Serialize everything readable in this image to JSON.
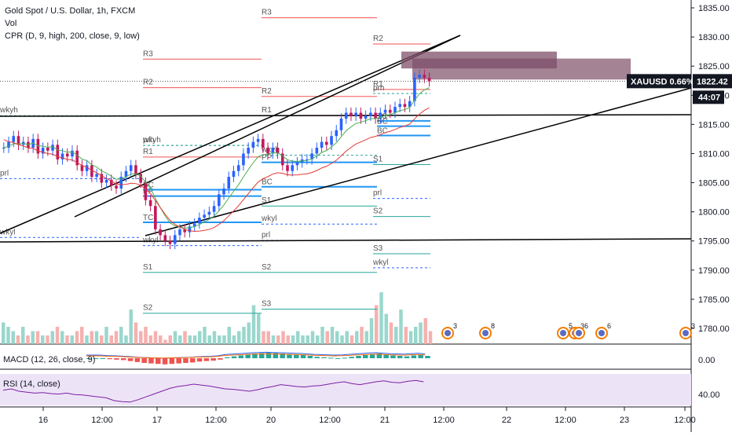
{
  "legend": {
    "symbol": "Gold Spot / U.S. Dollar, 1h, FXCM",
    "vol": "Vol",
    "cpr": "CPR (D, 9, high, 200, close, 9, low)"
  },
  "macd_label": "MACD (12, 26, close, 9)",
  "rsi_label": "RSI (14, close)",
  "price_tag": {
    "symbol": "XAUUSD 0.66%",
    "price": "1822.42",
    "countdown": "44:07"
  },
  "colors": {
    "up": "#26a69a",
    "down": "#ef5350",
    "candle_up": "#2962ff",
    "candle_down": "#c2185b",
    "rsi_bg": "#ede3f7"
  },
  "chart_data": {
    "type": "candlestick",
    "ylim": [
      1775.5,
      1836.5
    ],
    "y_ticks": [
      1835,
      1830,
      1825,
      1820,
      1815,
      1810,
      1805,
      1800,
      1795,
      1790,
      1785,
      1780
    ],
    "y_tick_labels": [
      "1835.00",
      "1830.00",
      "1825.00",
      "1820.00",
      "1815.00",
      "1810.00",
      "1805.00",
      "1800.00",
      "1795.00",
      "1790.00",
      "1785.00",
      "1780.00"
    ],
    "x_labels": [
      "16",
      "12:00",
      "17",
      "12:00",
      "20",
      "12:00",
      "21",
      "12:00",
      "22",
      "12:00",
      "23",
      "12:00"
    ],
    "closes": [
      1811,
      1812,
      1813,
      1811.5,
      1812,
      1811,
      1812.5,
      1810,
      1811,
      1810.5,
      1811.5,
      1809,
      1810,
      1809.5,
      1810.5,
      1808,
      1807,
      1808,
      1806,
      1806.5,
      1805,
      1805.5,
      1804.5,
      1804,
      1806,
      1807,
      1808,
      1806.5,
      1805,
      1802,
      1801,
      1797,
      1796,
      1795,
      1794.5,
      1796,
      1797,
      1796.5,
      1797.5,
      1798,
      1799,
      1799.5,
      1800,
      1801,
      1803,
      1804,
      1806,
      1807,
      1808,
      1810,
      1811,
      1812,
      1812.5,
      1811,
      1810,
      1811,
      1810,
      1808,
      1807,
      1808,
      1808.5,
      1809,
      1809,
      1810,
      1811,
      1812,
      1811.5,
      1813,
      1814,
      1816,
      1817,
      1816.5,
      1817,
      1816,
      1816.5,
      1817,
      1816,
      1817,
      1817.5,
      1817,
      1818,
      1818.5,
      1818,
      1819,
      1823,
      1823.5,
      1823,
      1822.4
    ],
    "volumes": [
      5,
      4,
      3,
      2,
      4,
      2,
      3,
      3,
      2,
      2,
      3,
      4,
      3,
      2,
      2,
      3,
      4,
      2,
      3,
      3,
      2,
      4,
      2,
      3,
      4,
      2,
      8,
      5,
      3,
      4,
      2,
      3,
      2,
      1,
      2,
      3,
      2,
      3,
      2,
      2,
      3,
      4,
      2,
      3,
      2,
      2,
      4,
      2,
      3,
      4,
      5,
      9,
      7,
      3,
      3,
      2,
      2,
      3,
      2,
      2,
      3,
      2,
      2,
      3,
      2,
      4,
      3,
      4,
      3,
      2,
      3,
      2,
      3,
      4,
      3,
      6,
      9,
      12,
      7,
      5,
      4,
      8,
      4,
      3,
      4,
      5,
      6,
      3
    ],
    "macd_hist": [
      0,
      0,
      0,
      -0.2,
      -0.3,
      -0.4,
      -0.6,
      -0.8,
      -1,
      -1.1,
      -1.2,
      -1.3,
      -1.2,
      -1.1,
      -1,
      -0.9,
      -0.7,
      -0.6,
      -0.5,
      -0.3,
      0.2,
      0.4,
      0.6,
      0.8,
      1,
      1.1,
      1.2,
      1.1,
      1,
      0.9,
      0.8,
      0.7,
      0.5,
      0.3,
      0.2,
      0.1,
      0,
      0.1,
      0.3,
      0.5,
      0.7,
      0.9,
      1,
      0.8,
      0.6,
      0.5,
      0.4,
      0.6,
      0.8,
      0.5
    ],
    "rsi": [
      52,
      55,
      50,
      48,
      46,
      47,
      45,
      44,
      46,
      43,
      42,
      40,
      38,
      36,
      30,
      28,
      27,
      32,
      38,
      44,
      50,
      56,
      60,
      62,
      65,
      63,
      61,
      58,
      55,
      54,
      52,
      50,
      53,
      57,
      60,
      64,
      62,
      60,
      59,
      61,
      62,
      65,
      68,
      70,
      66,
      64,
      67,
      70,
      72,
      69,
      68,
      71,
      73,
      70
    ],
    "sr_levels": [
      {
        "label": "R3",
        "p": 1833.3
      },
      {
        "label": "R2",
        "p": 1828.8
      },
      {
        "label": "R3",
        "p": 1826.2
      },
      {
        "label": "R2",
        "p": 1821.3
      },
      {
        "label": "R1",
        "p": 1821.0
      },
      {
        "label": "R2",
        "p": 1819.8
      },
      {
        "label": "R1",
        "p": 1816.5
      },
      {
        "label": "R1",
        "p": 1809.4
      },
      {
        "label": "S1",
        "p": 1808.1
      },
      {
        "label": "S1",
        "p": 1801.0
      },
      {
        "label": "S2",
        "p": 1799.2
      },
      {
        "label": "S3",
        "p": 1792.8
      },
      {
        "label": "S1",
        "p": 1789.6
      },
      {
        "label": "S2",
        "p": 1789.6
      },
      {
        "label": "S3",
        "p": 1783.3
      },
      {
        "label": "S2",
        "p": 1782.6
      }
    ],
    "dashed_levels": [
      {
        "label": "prh",
        "p": 1820.3
      },
      {
        "label": "wkyh",
        "p": 1816.5
      },
      {
        "label": "prh",
        "p": 1811.4
      },
      {
        "label": "wkyh",
        "p": 1811.4
      },
      {
        "label": "wkyh",
        "p": 1809.7
      },
      {
        "label": "prl",
        "p": 1805.7
      },
      {
        "label": "prl",
        "p": 1802.3
      },
      {
        "label": "wkyl",
        "p": 1797.9
      },
      {
        "label": "prl",
        "p": 1795.1
      },
      {
        "label": "wkyl",
        "p": 1795.6
      },
      {
        "label": "wkyl",
        "p": 1794.2
      },
      {
        "label": "wkyl",
        "p": 1790.4
      }
    ],
    "cpr_lines": [
      {
        "label": "TC",
        "p": 1815.6
      },
      {
        "label": "BC",
        "p": 1814.7
      },
      {
        "label": "BC",
        "p": 1813.1
      },
      {
        "label": "PP",
        "p": 1808.5
      },
      {
        "label": "BC",
        "p": 1804.3
      },
      {
        "label": "PP",
        "p": 1802.7
      },
      {
        "label": "BC",
        "p": 1803.8
      },
      {
        "label": "TC",
        "p": 1798.2
      }
    ],
    "event_badges": [
      "3",
      "8",
      "5",
      "3",
      "6",
      "6",
      "3"
    ]
  }
}
